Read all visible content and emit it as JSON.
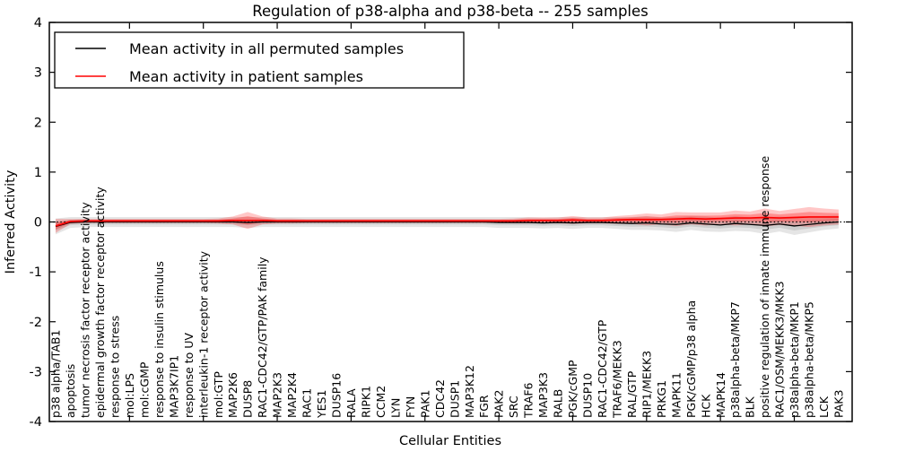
{
  "figure": {
    "title": "Regulation of p38-alpha and p38-beta -- 255 samples",
    "xlabel": "Cellular Entities",
    "ylabel": "Inferred Activity"
  },
  "legend": {
    "entries": [
      {
        "label": "Mean activity in all permuted samples",
        "color": "#000000"
      },
      {
        "label": "Mean activity in patient samples",
        "color": "#ff0000"
      }
    ]
  },
  "chart_data": {
    "type": "line",
    "title": "Regulation of p38-alpha and p38-beta -- 255 samples",
    "xlabel": "Cellular Entities",
    "ylabel": "Inferred Activity",
    "ylim": [
      -4,
      4
    ],
    "yticks": [
      -4,
      -3,
      -2,
      -1,
      0,
      1,
      2,
      3,
      4
    ],
    "grid": false,
    "legend_position": "upper left",
    "zero_line": {
      "style": "dotted",
      "color": "#000000",
      "y": 0
    },
    "categories": [
      "p38 alpha/TAB1",
      "apoptosis",
      "tumor necrosis factor receptor activity",
      "epidermal growth factor receptor activity",
      "response to stress",
      "mol:LPS",
      "mol:cGMP",
      "response to insulin stimulus",
      "MAP3K7IP1",
      "response to UV",
      "interleukin-1 receptor activity",
      "mol:GTP",
      "MAP2K6",
      "DUSP8",
      "RAC1-CDC42/GTP/PAK family",
      "MAP2K3",
      "MAP2K4",
      "RAC1",
      "YES1",
      "DUSP16",
      "RALA",
      "RIPK1",
      "CCM2",
      "LYN",
      "FYN",
      "PAK1",
      "CDC42",
      "DUSP1",
      "MAP3K12",
      "FGR",
      "PAK2",
      "SRC",
      "TRAF6",
      "MAP3K3",
      "RALB",
      "PGK/cGMP",
      "DUSP10",
      "RAC1-CDC42/GTP",
      "TRAF6/MEKK3",
      "RAL/GTP",
      "RIP1/MEKK3",
      "PRKG1",
      "MAPK11",
      "PGK/cGMP/p38 alpha",
      "HCK",
      "MAPK14",
      "p38alpha-beta/MKP7",
      "BLK",
      "positive regulation of innate immune response",
      "RAC1/OSM/MEKK3/MKK3",
      "p38alpha-beta/MKP1",
      "p38alpha-beta/MKP5",
      "LCK",
      "PAK3"
    ],
    "series": [
      {
        "name": "Mean activity in all permuted samples",
        "color": "#000000",
        "band_opacity_outer": 0.1,
        "band_opacity_inner": 0.1,
        "values": [
          -0.09,
          -0.01,
          0,
          0,
          0,
          0,
          0,
          0,
          0,
          0,
          0,
          0,
          0,
          -0.01,
          0,
          0,
          0,
          0,
          0,
          0,
          0,
          0,
          0,
          0,
          0,
          0,
          0,
          0,
          0,
          0,
          -0.01,
          -0.01,
          -0.01,
          -0.02,
          -0.01,
          -0.02,
          -0.01,
          -0.01,
          -0.02,
          -0.03,
          -0.02,
          -0.04,
          -0.05,
          -0.02,
          -0.04,
          -0.06,
          -0.03,
          -0.05,
          -0.07,
          -0.04,
          -0.08,
          -0.05,
          -0.02,
          0
        ],
        "std": [
          0.16,
          0.11,
          0.1,
          0.1,
          0.1,
          0.1,
          0.1,
          0.1,
          0.1,
          0.1,
          0.1,
          0.1,
          0.1,
          0.11,
          0.1,
          0.1,
          0.1,
          0.1,
          0.1,
          0.1,
          0.1,
          0.1,
          0.1,
          0.1,
          0.1,
          0.1,
          0.1,
          0.1,
          0.1,
          0.1,
          0.11,
          0.11,
          0.11,
          0.11,
          0.11,
          0.12,
          0.11,
          0.11,
          0.12,
          0.13,
          0.14,
          0.13,
          0.15,
          0.14,
          0.15,
          0.14,
          0.15,
          0.14,
          0.17,
          0.15,
          0.18,
          0.16,
          0.14,
          0.13
        ]
      },
      {
        "name": "Mean activity in patient samples",
        "color": "#ff0000",
        "band_opacity_outer": 0.22,
        "band_opacity_inner": 0.28,
        "values": [
          -0.08,
          0.01,
          0.02,
          0.02,
          0.02,
          0.02,
          0.02,
          0.02,
          0.02,
          0.02,
          0.02,
          0.02,
          0.03,
          0.03,
          0.03,
          0.02,
          0.02,
          0.02,
          0.02,
          0.02,
          0.02,
          0.02,
          0.02,
          0.02,
          0.02,
          0.02,
          0.02,
          0.02,
          0.02,
          0.02,
          0.02,
          0.02,
          0.03,
          0.03,
          0.03,
          0.04,
          0.03,
          0.03,
          0.04,
          0.05,
          0.05,
          0.05,
          0.06,
          0.07,
          0.06,
          0.07,
          0.08,
          0.08,
          0.09,
          0.08,
          0.09,
          0.1,
          0.1,
          0.1
        ],
        "std": [
          0.14,
          0.05,
          0.04,
          0.04,
          0.04,
          0.04,
          0.04,
          0.04,
          0.04,
          0.04,
          0.04,
          0.05,
          0.08,
          0.17,
          0.08,
          0.05,
          0.05,
          0.04,
          0.04,
          0.04,
          0.04,
          0.04,
          0.04,
          0.04,
          0.04,
          0.04,
          0.04,
          0.04,
          0.04,
          0.04,
          0.04,
          0.05,
          0.06,
          0.06,
          0.06,
          0.08,
          0.06,
          0.06,
          0.08,
          0.09,
          0.12,
          0.1,
          0.14,
          0.12,
          0.13,
          0.12,
          0.15,
          0.13,
          0.18,
          0.14,
          0.17,
          0.2,
          0.17,
          0.15
        ]
      }
    ]
  }
}
